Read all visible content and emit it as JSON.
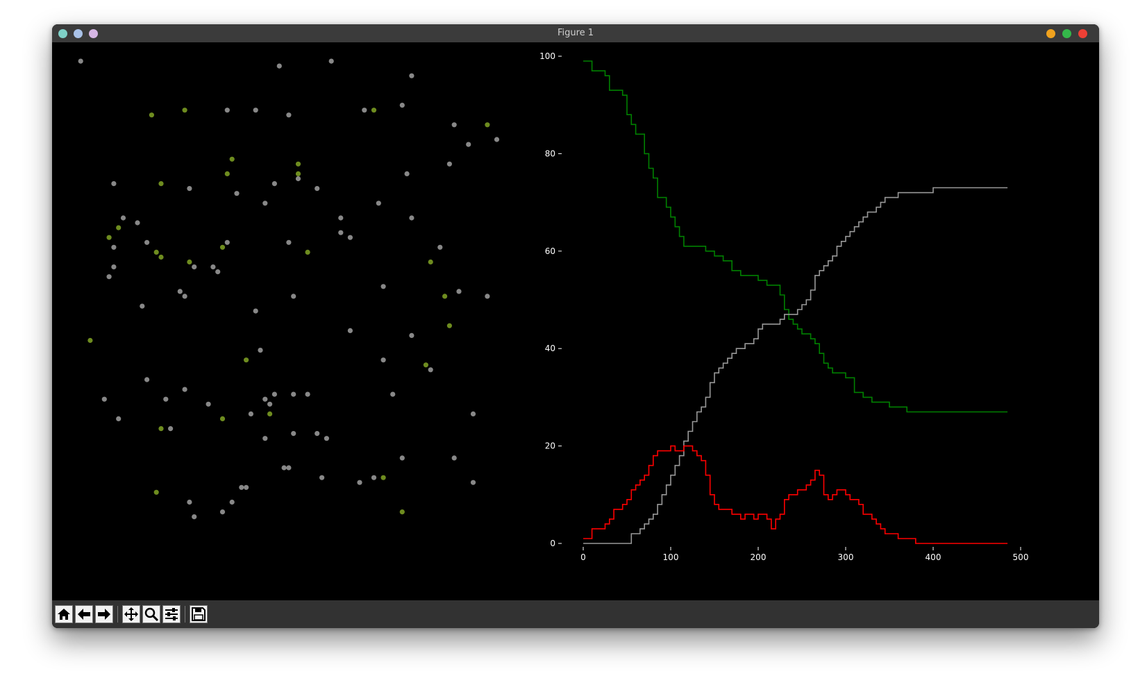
{
  "window": {
    "title": "Figure 1",
    "left_controls": [
      "#7fd1c8",
      "#a9c2e8",
      "#d6b6e4"
    ],
    "right_controls": [
      "#f0a21e",
      "#34b84a",
      "#ee4035"
    ]
  },
  "toolbar": {
    "buttons": [
      {
        "name": "home-button",
        "icon": "home-icon"
      },
      {
        "name": "back-button",
        "icon": "arrow-left-icon"
      },
      {
        "name": "forward-button",
        "icon": "arrow-right-icon"
      },
      {
        "name": "pan-button",
        "icon": "move-icon"
      },
      {
        "name": "zoom-button",
        "icon": "magnifier-icon"
      },
      {
        "name": "configure-subplots-button",
        "icon": "sliders-icon"
      },
      {
        "name": "save-button",
        "icon": "floppy-disk-icon"
      }
    ]
  },
  "chart_data": [
    {
      "type": "scatter",
      "axes": "off",
      "xlim": [
        0,
        1
      ],
      "ylim": [
        0,
        1
      ],
      "colors": {
        "healthy": "#888888",
        "infected": "#6e8c1f"
      },
      "series": [
        {
          "status": "healthy",
          "x": [
            0.04,
            0.46,
            0.57,
            0.74,
            0.73,
            0.35,
            0.41,
            0.48,
            0.64,
            0.72,
            0.86,
            0.83,
            0.92,
            0.82,
            0.11,
            0.27,
            0.5,
            0.45,
            0.54,
            0.37,
            0.67,
            0.59,
            0.74,
            0.43,
            0.59,
            0.16,
            0.13,
            0.18,
            0.11,
            0.48,
            0.11,
            0.35,
            0.32,
            0.61,
            0.8,
            0.1,
            0.28,
            0.25,
            0.26,
            0.68,
            0.9,
            0.49,
            0.33,
            0.84,
            0.17,
            0.41,
            0.74,
            0.61,
            0.42,
            0.68,
            0.78,
            0.18,
            0.26,
            0.31,
            0.22,
            0.43,
            0.44,
            0.45,
            0.52,
            0.7,
            0.49,
            0.09,
            0.87,
            0.23,
            0.12,
            0.4,
            0.49,
            0.54,
            0.43,
            0.56,
            0.72,
            0.83,
            0.48,
            0.47,
            0.66,
            0.55,
            0.38,
            0.87,
            0.63,
            0.27,
            0.36,
            0.34,
            0.28,
            0.39
          ],
          "y": [
            0.99,
            0.98,
            0.99,
            0.96,
            0.76,
            0.89,
            0.89,
            0.88,
            0.89,
            0.9,
            0.82,
            0.86,
            0.83,
            0.78,
            0.74,
            0.73,
            0.75,
            0.74,
            0.73,
            0.72,
            0.7,
            0.67,
            0.67,
            0.7,
            0.64,
            0.66,
            0.67,
            0.62,
            0.61,
            0.62,
            0.57,
            0.62,
            0.57,
            0.63,
            0.61,
            0.55,
            0.57,
            0.52,
            0.51,
            0.53,
            0.51,
            0.51,
            0.56,
            0.52,
            0.49,
            0.48,
            0.43,
            0.44,
            0.4,
            0.38,
            0.36,
            0.34,
            0.32,
            0.29,
            0.3,
            0.3,
            0.29,
            0.31,
            0.31,
            0.31,
            0.31,
            0.3,
            0.27,
            0.24,
            0.26,
            0.27,
            0.23,
            0.23,
            0.22,
            0.22,
            0.18,
            0.18,
            0.16,
            0.16,
            0.14,
            0.14,
            0.12,
            0.13,
            0.13,
            0.09,
            0.09,
            0.07,
            0.06,
            0.12
          ]
        },
        {
          "status": "infected",
          "x": [
            0.66,
            0.19,
            0.26,
            0.9,
            0.36,
            0.5,
            0.5,
            0.35,
            0.21,
            0.12,
            0.34,
            0.52,
            0.1,
            0.2,
            0.21,
            0.27,
            0.78,
            0.81,
            0.82,
            0.06,
            0.39,
            0.77,
            0.44,
            0.34,
            0.21,
            0.68,
            0.2,
            0.72
          ],
          "y": [
            0.89,
            0.88,
            0.89,
            0.86,
            0.79,
            0.78,
            0.76,
            0.76,
            0.74,
            0.65,
            0.61,
            0.6,
            0.63,
            0.6,
            0.59,
            0.58,
            0.58,
            0.51,
            0.45,
            0.42,
            0.38,
            0.37,
            0.27,
            0.26,
            0.24,
            0.14,
            0.11,
            0.07
          ]
        }
      ]
    },
    {
      "type": "line",
      "xlim": [
        0,
        500
      ],
      "ylim": [
        0,
        100
      ],
      "xticks": [
        "0",
        "100",
        "200",
        "300",
        "400",
        "500"
      ],
      "yticks": [
        "0",
        "20",
        "40",
        "60",
        "80",
        "100"
      ],
      "series": [
        {
          "color": "#008000",
          "x": [
            0,
            5,
            10,
            15,
            20,
            25,
            30,
            35,
            40,
            45,
            50,
            55,
            60,
            65,
            70,
            75,
            80,
            85,
            90,
            95,
            100,
            105,
            110,
            115,
            120,
            125,
            130,
            140,
            150,
            160,
            170,
            180,
            190,
            200,
            210,
            220,
            225,
            230,
            235,
            240,
            245,
            250,
            255,
            260,
            265,
            270,
            275,
            280,
            285,
            290,
            300,
            310,
            320,
            330,
            340,
            350,
            360,
            370,
            380,
            390,
            400,
            420,
            440,
            460,
            480,
            485
          ],
          "y": [
            99,
            99,
            97,
            97,
            97,
            96,
            93,
            93,
            93,
            92,
            88,
            86,
            84,
            84,
            80,
            77,
            75,
            71,
            71,
            69,
            67,
            65,
            63,
            61,
            61,
            61,
            61,
            60,
            59,
            58,
            56,
            55,
            55,
            54,
            53,
            53,
            51,
            48,
            46,
            45,
            44,
            43,
            43,
            42,
            41,
            39,
            37,
            36,
            35,
            35,
            34,
            31,
            30,
            29,
            29,
            28,
            28,
            27,
            27,
            27,
            27,
            27,
            27,
            27,
            27,
            27
          ]
        },
        {
          "color": "#999999",
          "x": [
            0,
            10,
            20,
            30,
            40,
            50,
            55,
            60,
            65,
            70,
            75,
            80,
            85,
            90,
            95,
            100,
            105,
            110,
            115,
            120,
            125,
            130,
            135,
            140,
            145,
            150,
            155,
            160,
            165,
            170,
            175,
            180,
            185,
            190,
            195,
            200,
            205,
            210,
            215,
            220,
            225,
            230,
            235,
            240,
            245,
            250,
            255,
            260,
            265,
            270,
            275,
            280,
            285,
            290,
            295,
            300,
            305,
            310,
            315,
            320,
            325,
            330,
            335,
            340,
            345,
            350,
            355,
            360,
            365,
            370,
            380,
            390,
            400,
            410,
            420,
            440,
            460,
            480,
            485
          ],
          "y": [
            0,
            0,
            0,
            0,
            0,
            0,
            2,
            2,
            3,
            4,
            5,
            6,
            8,
            10,
            12,
            14,
            16,
            18,
            21,
            23,
            25,
            27,
            28,
            30,
            33,
            35,
            36,
            37,
            38,
            39,
            40,
            40,
            41,
            41,
            42,
            44,
            45,
            45,
            45,
            45,
            46,
            47,
            47,
            47,
            48,
            49,
            50,
            52,
            55,
            56,
            57,
            58,
            59,
            61,
            62,
            63,
            64,
            65,
            66,
            67,
            68,
            68,
            69,
            70,
            71,
            71,
            71,
            72,
            72,
            72,
            72,
            72,
            73,
            73,
            73,
            73,
            73,
            73,
            73
          ]
        },
        {
          "color": "#ff0000",
          "x": [
            0,
            5,
            10,
            15,
            20,
            25,
            30,
            35,
            40,
            45,
            50,
            55,
            60,
            65,
            70,
            75,
            80,
            85,
            90,
            95,
            100,
            105,
            110,
            115,
            120,
            125,
            130,
            135,
            140,
            145,
            150,
            155,
            160,
            165,
            170,
            175,
            180,
            185,
            190,
            195,
            200,
            205,
            210,
            215,
            220,
            225,
            230,
            235,
            240,
            245,
            250,
            255,
            260,
            265,
            270,
            275,
            280,
            285,
            290,
            295,
            300,
            305,
            310,
            315,
            320,
            325,
            330,
            335,
            340,
            345,
            350,
            355,
            360,
            365,
            370,
            380,
            390,
            400,
            410,
            420,
            440,
            460,
            480,
            485
          ],
          "y": [
            1,
            1,
            3,
            3,
            3,
            4,
            5,
            7,
            7,
            8,
            9,
            11,
            12,
            13,
            14,
            16,
            18,
            19,
            19,
            19,
            20,
            19,
            19,
            20,
            20,
            19,
            18,
            17,
            14,
            10,
            8,
            7,
            7,
            7,
            6,
            6,
            5,
            6,
            6,
            5,
            6,
            6,
            5,
            3,
            5,
            6,
            9,
            10,
            10,
            11,
            11,
            12,
            13,
            15,
            14,
            10,
            9,
            10,
            11,
            11,
            10,
            9,
            9,
            8,
            6,
            6,
            5,
            4,
            3,
            2,
            2,
            2,
            1,
            1,
            1,
            0,
            0,
            0,
            0,
            0,
            0,
            0,
            0,
            0
          ]
        }
      ]
    }
  ]
}
